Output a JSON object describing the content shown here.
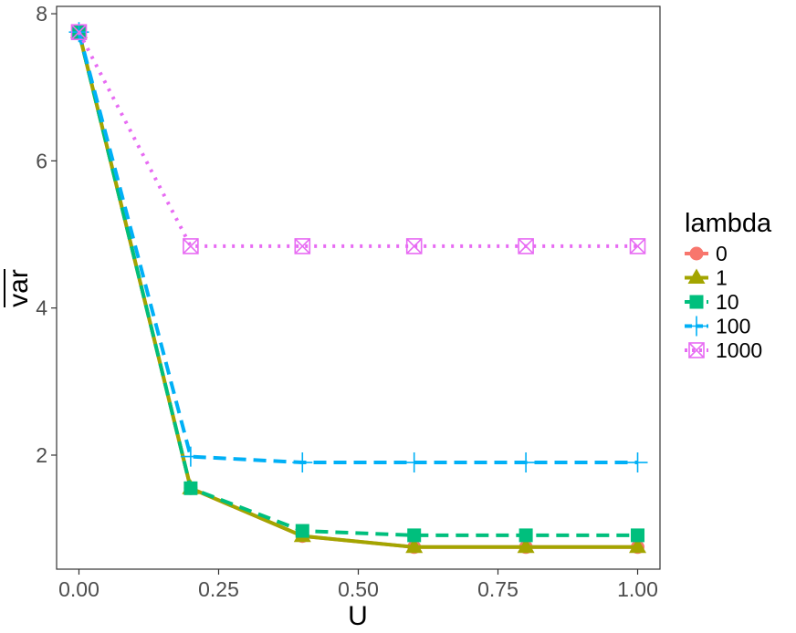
{
  "chart_data": {
    "type": "line",
    "xlabel": "U",
    "ylabel": "var",
    "ylabel_overline": true,
    "x": [
      0.0,
      0.2,
      0.4,
      0.6,
      0.8,
      1.0
    ],
    "xlim": [
      -0.04,
      1.04
    ],
    "ylim": [
      0.45,
      8.1
    ],
    "xticks": [
      0.0,
      0.25,
      0.5,
      0.75,
      1.0
    ],
    "xtick_labels": [
      "0.00",
      "0.25",
      "0.50",
      "0.75",
      "1.00"
    ],
    "yticks": [
      2,
      4,
      6,
      8
    ],
    "ytick_labels": [
      "2",
      "4",
      "6",
      "8"
    ],
    "grid": false,
    "legend": {
      "title": "lambda",
      "placement": "right"
    },
    "series": [
      {
        "name": "0",
        "color": "#F8766D",
        "dash": "solid",
        "marker": "circle",
        "values": [
          7.75,
          1.55,
          0.9,
          0.75,
          0.75,
          0.75
        ]
      },
      {
        "name": "1",
        "color": "#A3A500",
        "dash": "solid",
        "marker": "triangle",
        "values": [
          7.75,
          1.55,
          0.9,
          0.75,
          0.75,
          0.75
        ]
      },
      {
        "name": "10",
        "color": "#00BF7D",
        "dash": "dashed",
        "marker": "square",
        "values": [
          7.75,
          1.55,
          0.97,
          0.91,
          0.91,
          0.91
        ]
      },
      {
        "name": "100",
        "color": "#00B0F6",
        "dash": "dashed",
        "marker": "plus",
        "values": [
          7.75,
          1.98,
          1.9,
          1.9,
          1.9,
          1.9
        ]
      },
      {
        "name": "1000",
        "color": "#E76BF3",
        "dash": "dotted",
        "marker": "boxx",
        "values": [
          7.75,
          4.84,
          4.84,
          4.84,
          4.84,
          4.84
        ]
      }
    ]
  }
}
